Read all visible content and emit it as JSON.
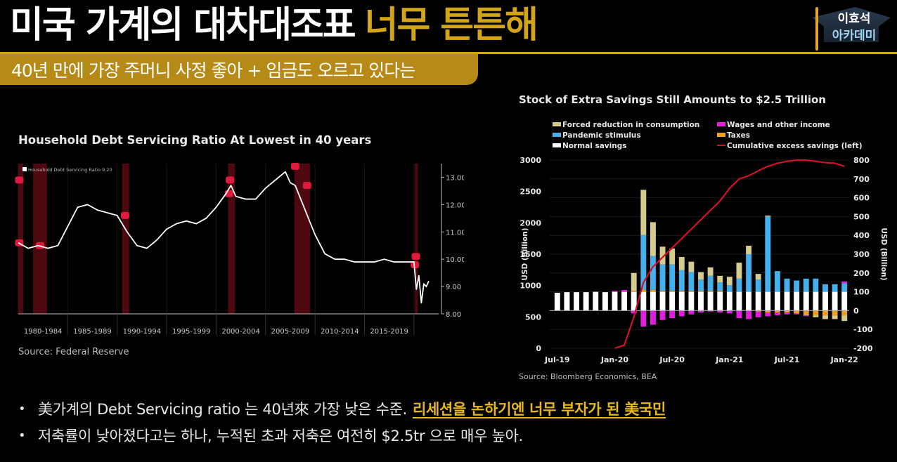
{
  "header": {
    "title_white": "미국 가계의 대차대조표",
    "title_yellow": "너무 튼튼해",
    "subtitle": "40년 만에 가장 주머니 사정 좋아 + 임금도 오르고 있다는",
    "logo_line1": "이효석",
    "logo_line2": "아카데미",
    "accent_color": "#d4a418"
  },
  "left_chart": {
    "title": "Household Debt Servicing Ratio At Lowest in 40 years",
    "legend": "Household Debt Servicing Ratio 9.20",
    "source": "Source: Federal Reserve"
  },
  "right_chart": {
    "title": "Stock of Extra Savings Still Amounts to $2.5 Trillion",
    "legend": [
      {
        "label": "Forced reduction in consumption",
        "color": "#d6cc8e"
      },
      {
        "label": "Wages and other income",
        "color": "#e11ee0"
      },
      {
        "label": "Pandemic stimulus",
        "color": "#45b0ec"
      },
      {
        "label": "Taxes",
        "color": "#f0a01e"
      },
      {
        "label": "Normal savings",
        "color": "#ffffff"
      },
      {
        "label": "Cumulative excess savings (left)",
        "color": "#d0102a"
      }
    ],
    "source": "Source: Bloomberg Economics, BEA"
  },
  "bullets": [
    {
      "text": "美가계의 Debt Servicing ratio 는 40년來 가장 낮은 수준.",
      "highlight": "리세션을 논하기엔 너무 부자가 된 美국민"
    },
    {
      "text": "저축률이 낮아졌다고는 하나, 누적된 초과 저축은 여전히 $2.5tr 으로 매우 높아.",
      "highlight": ""
    }
  ],
  "chart_data": [
    {
      "type": "line",
      "title": "Household Debt Servicing Ratio At Lowest in 40 years",
      "xlabel": "",
      "ylabel": "",
      "series_name": "Household Debt Servicing Ratio",
      "latest_value": 9.2,
      "categories": [
        "1980-1984",
        "1985-1989",
        "1990-1994",
        "1995-1999",
        "2000-2004",
        "2005-2009",
        "2010-2014",
        "2015-2019"
      ],
      "y_ticks": [
        8.0,
        9.0,
        10.0,
        11.0,
        12.0,
        13.0
      ],
      "ylim": [
        8.0,
        13.5
      ],
      "y_axis_position": "right",
      "recession_shading": [
        "1980",
        "1981-1982",
        "1990-1991",
        "2001",
        "2007-2009",
        "2020"
      ],
      "x": [
        1980.0,
        1981.0,
        1982.0,
        1983.0,
        1984.0,
        1985.0,
        1986.0,
        1987.0,
        1988.0,
        1989.0,
        1990.0,
        1991.0,
        1992.0,
        1993.0,
        1994.0,
        1995.0,
        1996.0,
        1997.0,
        1998.0,
        1999.0,
        2000.0,
        2001.0,
        2001.5,
        2002.0,
        2003.0,
        2004.0,
        2005.0,
        2006.0,
        2007.0,
        2007.5,
        2008.0,
        2009.0,
        2010.0,
        2011.0,
        2012.0,
        2013.0,
        2014.0,
        2015.0,
        2016.0,
        2017.0,
        2018.0,
        2019.0,
        2020.0,
        2020.25,
        2020.5,
        2020.75,
        2021.0,
        2021.25,
        2021.5
      ],
      "values": [
        10.6,
        10.4,
        10.5,
        10.4,
        10.5,
        11.2,
        11.9,
        12.0,
        11.8,
        11.7,
        11.6,
        11.0,
        10.5,
        10.4,
        10.7,
        11.1,
        11.3,
        11.4,
        11.3,
        11.5,
        11.9,
        12.4,
        12.7,
        12.3,
        12.2,
        12.2,
        12.6,
        12.9,
        13.2,
        12.8,
        12.7,
        11.8,
        10.9,
        10.2,
        10.0,
        10.0,
        9.9,
        9.9,
        9.9,
        10.0,
        9.9,
        9.9,
        9.9,
        8.9,
        9.4,
        8.4,
        9.1,
        9.0,
        9.2
      ]
    },
    {
      "type": "bar",
      "title": "Stock of Extra Savings Still Amounts to $2.5 Trillion",
      "xlabel": "",
      "ylabel": "USD (Billion)",
      "ylabel_right": "USD (Billion)",
      "stacked": true,
      "categories": [
        "Jul-19",
        "Aug-19",
        "Sep-19",
        "Oct-19",
        "Nov-19",
        "Dec-19",
        "Jan-20",
        "Feb-20",
        "Mar-20",
        "Apr-20",
        "May-20",
        "Jun-20",
        "Jul-20",
        "Aug-20",
        "Sep-20",
        "Oct-20",
        "Nov-20",
        "Dec-20",
        "Jan-21",
        "Feb-21",
        "Mar-21",
        "Apr-21",
        "May-21",
        "Jun-21",
        "Jul-21",
        "Aug-21",
        "Sep-21",
        "Oct-21",
        "Nov-21",
        "Dec-21",
        "Jan-22"
      ],
      "x_tick_labels": [
        "Jul-19",
        "Jan-20",
        "Jul-20",
        "Jan-21",
        "Jul-21",
        "Jan-22"
      ],
      "y_ticks_left": [
        0,
        500,
        1000,
        1500,
        2000,
        2500,
        3000
      ],
      "y_ticks_right": [
        -200,
        -100,
        0,
        100,
        200,
        300,
        400,
        500,
        600,
        700,
        800
      ],
      "ylim_left": [
        0,
        3000
      ],
      "ylim_right": [
        -200,
        800
      ],
      "series": [
        {
          "name": "Normal savings",
          "axis": "right",
          "values": [
            95,
            98,
            98,
            98,
            100,
            98,
            100,
            100,
            100,
            100,
            100,
            100,
            100,
            100,
            100,
            100,
            100,
            100,
            100,
            100,
            100,
            100,
            100,
            100,
            100,
            100,
            100,
            100,
            100,
            100,
            100
          ]
        },
        {
          "name": "Taxes",
          "axis": "right",
          "values": [
            0,
            0,
            0,
            0,
            0,
            0,
            0,
            0,
            5,
            12,
            10,
            5,
            5,
            5,
            5,
            5,
            5,
            5,
            0,
            0,
            0,
            -5,
            -10,
            -10,
            -10,
            -15,
            -20,
            -25,
            -25,
            -25,
            -25
          ]
        },
        {
          "name": "Pandemic stimulus",
          "axis": "right",
          "values": [
            0,
            0,
            0,
            0,
            0,
            0,
            0,
            0,
            0,
            290,
            180,
            140,
            140,
            110,
            100,
            60,
            80,
            45,
            35,
            70,
            200,
            65,
            400,
            110,
            70,
            60,
            70,
            70,
            40,
            40,
            45
          ]
        },
        {
          "name": "Forced reduction in consumption",
          "axis": "right",
          "values": [
            0,
            0,
            0,
            0,
            0,
            0,
            0,
            0,
            95,
            240,
            180,
            95,
            85,
            70,
            55,
            40,
            45,
            35,
            45,
            85,
            45,
            30,
            5,
            0,
            0,
            0,
            -5,
            -10,
            -20,
            -20,
            -30
          ]
        },
        {
          "name": "Wages and other income",
          "axis": "right",
          "values": [
            0,
            0,
            0,
            0,
            0,
            0,
            5,
            10,
            -15,
            -85,
            -75,
            -50,
            -40,
            -30,
            -20,
            -10,
            -5,
            -10,
            -15,
            -40,
            -45,
            -30,
            -20,
            -15,
            -10,
            -5,
            -5,
            0,
            0,
            0,
            10
          ]
        }
      ],
      "line_series": {
        "name": "Cumulative excess savings (left)",
        "axis": "left",
        "values": [
          null,
          null,
          null,
          null,
          null,
          null,
          0,
          50,
          500,
          1050,
          1300,
          1450,
          1600,
          1750,
          1900,
          2050,
          2200,
          2350,
          2550,
          2700,
          2750,
          2830,
          2900,
          2950,
          2980,
          3000,
          3000,
          2980,
          2960,
          2950,
          2900
        ]
      },
      "legend_position": "top"
    }
  ]
}
